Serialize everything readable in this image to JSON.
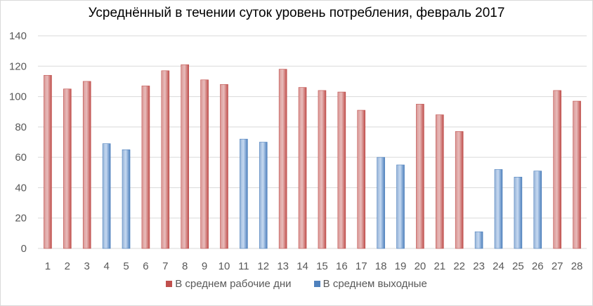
{
  "chart_data": {
    "type": "bar",
    "title": "Усреднённый в течении суток уровень потребления, февраль 2017",
    "xlabel": "",
    "ylabel": "",
    "ylim": [
      0,
      140
    ],
    "y_ticks": [
      0,
      20,
      40,
      60,
      80,
      100,
      120,
      140
    ],
    "grid": true,
    "legend_position": "bottom",
    "categories": [
      "1",
      "2",
      "3",
      "4",
      "5",
      "6",
      "7",
      "8",
      "9",
      "10",
      "11",
      "12",
      "13",
      "14",
      "15",
      "16",
      "17",
      "18",
      "19",
      "20",
      "21",
      "22",
      "23",
      "24",
      "25",
      "26",
      "27",
      "28"
    ],
    "series": [
      {
        "name": "В среднем рабочие дни",
        "color": "#c0504d",
        "values": [
          114,
          105,
          110,
          null,
          null,
          107,
          117,
          121,
          111,
          108,
          null,
          null,
          118,
          106,
          104,
          103,
          91,
          null,
          null,
          95,
          88,
          77,
          null,
          null,
          null,
          null,
          104,
          97
        ]
      },
      {
        "name": "В среднем выходные",
        "color": "#4f81bd",
        "values": [
          null,
          null,
          null,
          69,
          65,
          null,
          null,
          null,
          null,
          null,
          72,
          70,
          null,
          null,
          null,
          null,
          null,
          60,
          55,
          null,
          null,
          null,
          11,
          52,
          47,
          51,
          null,
          null
        ]
      }
    ]
  }
}
